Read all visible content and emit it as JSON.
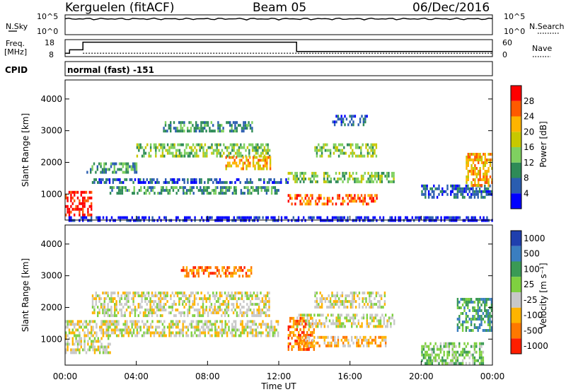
{
  "header": {
    "radar": "Kerguelen (fitACF)",
    "beam": "Beam 05",
    "date": "06/Dec/2016"
  },
  "left_labels": {
    "nsky": "N.Sky",
    "freq": "Freq.",
    "freq_unit": "[MHz]",
    "cpid": "CPID"
  },
  "right_labels": {
    "nsearch": "N.Search",
    "nave": "Nave"
  },
  "cpid_text": "normal (fast) -151",
  "time_axis": {
    "label": "Time UT"
  },
  "chart_data": [
    {
      "type": "line",
      "name": "noise",
      "log_scale": true,
      "left_ticks": [
        "10^5",
        "10^0"
      ],
      "right_ticks": [
        "10^5",
        "10^0"
      ],
      "x": [
        0,
        24
      ],
      "y_level": [
        10000,
        10000
      ]
    },
    {
      "type": "line",
      "name": "frequency",
      "left_ticks": [
        "18",
        "8"
      ],
      "right_ticks": [
        "60",
        "0"
      ],
      "freq_steps": [
        [
          0,
          10
        ],
        [
          0.25,
          12
        ],
        [
          1,
          16.5
        ],
        [
          13,
          11
        ],
        [
          24,
          11
        ]
      ],
      "nave_level": 12
    },
    {
      "type": "heatmap",
      "xlabel": "Time UT",
      "ylabel": "Slant Range [km]",
      "xlim": [
        0,
        24
      ],
      "ylim": [
        180,
        4600
      ],
      "x_ticks": [
        "00:00",
        "04:00",
        "08:00",
        "12:00",
        "16:00",
        "20:00",
        "00:00"
      ],
      "y_ticks": [
        "1000",
        "2000",
        "3000",
        "4000"
      ],
      "colorbar_label": "Power [dB]",
      "colorbar_ticks": [
        "28",
        "24",
        "20",
        "16",
        "12",
        "8",
        "4"
      ],
      "colors": [
        "#ff0000",
        "#ff5a00",
        "#ffb400",
        "#c8c800",
        "#7fd060",
        "#2e8b57",
        "#2a5db0",
        "#0000ff"
      ],
      "regions": [
        {
          "x0": 0.0,
          "x1": 1.5,
          "y0": 300,
          "y1": 1100,
          "level": 0
        },
        {
          "x0": 1.2,
          "x1": 4.0,
          "y0": 1700,
          "y1": 2000,
          "level": 5
        },
        {
          "x0": 1.5,
          "x1": 12.5,
          "y0": 1350,
          "y1": 1500,
          "level": 6
        },
        {
          "x0": 2.5,
          "x1": 12.0,
          "y0": 1000,
          "y1": 1250,
          "level": 5
        },
        {
          "x0": 4.0,
          "x1": 11.5,
          "y0": 2200,
          "y1": 2600,
          "level": 4
        },
        {
          "x0": 5.5,
          "x1": 10.5,
          "y0": 3000,
          "y1": 3300,
          "level": 5
        },
        {
          "x0": 9.0,
          "x1": 11.5,
          "y0": 1800,
          "y1": 2200,
          "level": 2
        },
        {
          "x0": 12.5,
          "x1": 18.5,
          "y0": 1400,
          "y1": 1700,
          "level": 4
        },
        {
          "x0": 12.5,
          "x1": 17.5,
          "y0": 700,
          "y1": 1000,
          "level": 1
        },
        {
          "x0": 14.0,
          "x1": 17.5,
          "y0": 2200,
          "y1": 2600,
          "level": 4
        },
        {
          "x0": 15.0,
          "x1": 17.0,
          "y0": 3200,
          "y1": 3500,
          "level": 6
        },
        {
          "x0": 20.0,
          "x1": 24.0,
          "y0": 900,
          "y1": 1300,
          "level": 6
        },
        {
          "x0": 22.5,
          "x1": 24.0,
          "y0": 1300,
          "y1": 2300,
          "level": 2
        },
        {
          "x0": 0.0,
          "x1": 24.0,
          "y0": 180,
          "y1": 300,
          "level": 7
        }
      ]
    },
    {
      "type": "heatmap",
      "xlabel": "Time UT",
      "ylabel": "Slant Range [km]",
      "xlim": [
        0,
        24
      ],
      "ylim": [
        180,
        4600
      ],
      "x_ticks": [
        "00:00",
        "04:00",
        "08:00",
        "12:00",
        "16:00",
        "20:00",
        "00:00"
      ],
      "y_ticks": [
        "1000",
        "2000",
        "3000",
        "4000"
      ],
      "colorbar_label": "Velocity [m s⁻¹]",
      "colorbar_ticks": [
        "1000",
        "500",
        "100",
        "25",
        "-25",
        "-100",
        "-500",
        "-1000"
      ],
      "colors": [
        "#1f3fae",
        "#3a7ec0",
        "#3a9a55",
        "#7fd040",
        "#c8c8c8",
        "#ffb400",
        "#ff7800",
        "#ff1e00"
      ],
      "regions": [
        {
          "x0": 0.0,
          "x1": 2.5,
          "y0": 600,
          "y1": 1600,
          "level": 4
        },
        {
          "x0": 1.5,
          "x1": 11.5,
          "y0": 1700,
          "y1": 2500,
          "level": 4
        },
        {
          "x0": 2.0,
          "x1": 12.0,
          "y0": 1100,
          "y1": 1600,
          "level": 4
        },
        {
          "x0": 6.5,
          "x1": 10.5,
          "y0": 3000,
          "y1": 3300,
          "level": 6
        },
        {
          "x0": 12.5,
          "x1": 14.0,
          "y0": 700,
          "y1": 1700,
          "level": 6
        },
        {
          "x0": 13.0,
          "x1": 18.0,
          "y0": 800,
          "y1": 1100,
          "level": 5
        },
        {
          "x0": 13.0,
          "x1": 18.5,
          "y0": 1400,
          "y1": 1800,
          "level": 4
        },
        {
          "x0": 14.0,
          "x1": 18.0,
          "y0": 2000,
          "y1": 2500,
          "level": 4
        },
        {
          "x0": 22.0,
          "x1": 24.0,
          "y0": 1300,
          "y1": 2300,
          "level": 2
        },
        {
          "x0": 20.0,
          "x1": 23.5,
          "y0": 200,
          "y1": 900,
          "level": 3
        }
      ]
    }
  ]
}
